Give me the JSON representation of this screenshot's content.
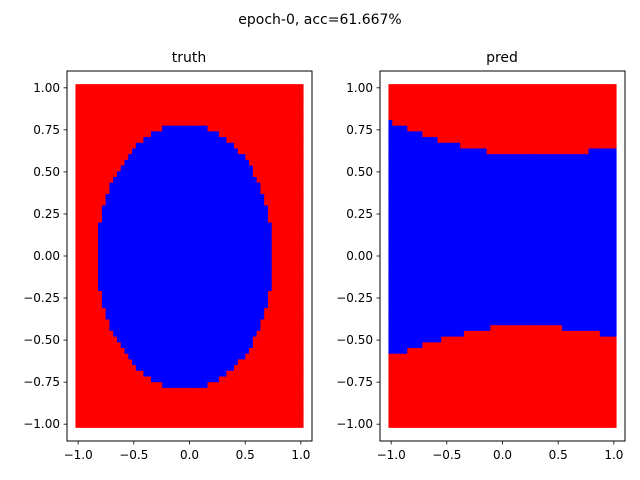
{
  "figure": {
    "suptitle": "epoch-0, acc=61.667%"
  },
  "chart_data": [
    {
      "type": "scatter",
      "title": "truth",
      "xlim": [
        -1.1,
        1.1
      ],
      "ylim": [
        -1.1,
        1.1
      ],
      "xticks": [
        -1.0,
        -0.5,
        0.0,
        0.5,
        1.0
      ],
      "yticks": [
        -1.0,
        -0.75,
        -0.5,
        -0.25,
        0.0,
        0.25,
        0.5,
        0.75,
        1.0
      ],
      "xtick_labels": [
        "−1.0",
        "−0.5",
        "0.0",
        "0.5",
        "1.0"
      ],
      "ytick_labels": [
        "−1.00",
        "−0.75",
        "−0.50",
        "−0.25",
        "0.00",
        "0.25",
        "0.50",
        "0.75",
        "1.00"
      ],
      "grid": false,
      "points_domain": {
        "x": [
          -1.0,
          1.0
        ],
        "y": [
          -1.0,
          1.0
        ],
        "grid_points_per_axis": 60
      },
      "region": {
        "shape": "ellipse",
        "center": [
          -0.03,
          0.0
        ],
        "radii": [
          0.79,
          0.79
        ],
        "inside_color": "#0000ff",
        "outside_color": "#ff0000"
      }
    },
    {
      "type": "scatter",
      "title": "pred",
      "xlim": [
        -1.1,
        1.1
      ],
      "ylim": [
        -1.1,
        1.1
      ],
      "xticks": [
        -1.0,
        -0.5,
        0.0,
        0.5,
        1.0
      ],
      "yticks": [
        -1.0,
        -0.75,
        -0.5,
        -0.25,
        0.0,
        0.25,
        0.5,
        0.75,
        1.0
      ],
      "xtick_labels": [
        "−1.0",
        "−0.5",
        "0.0",
        "0.5",
        "1.0"
      ],
      "ytick_labels": [
        "−1.00",
        "−0.75",
        "−0.50",
        "−0.25",
        "0.00",
        "0.25",
        "0.50",
        "0.75",
        "1.00"
      ],
      "grid": false,
      "points_domain": {
        "x": [
          -1.0,
          1.0
        ],
        "y": [
          -1.0,
          1.0
        ],
        "grid_points_per_axis": 60
      },
      "region": {
        "shape": "band",
        "top_boundary": {
          "x": [
            -1.0,
            -0.5,
            0.0,
            0.5,
            1.0
          ],
          "y": [
            0.8,
            0.68,
            0.61,
            0.61,
            0.64
          ]
        },
        "bottom_boundary": {
          "x": [
            -1.0,
            -0.5,
            0.0,
            0.5,
            1.0
          ],
          "y": [
            -0.59,
            -0.48,
            -0.41,
            -0.42,
            -0.47
          ]
        },
        "inside_color": "#0000ff",
        "outside_color": "#ff0000"
      }
    }
  ]
}
